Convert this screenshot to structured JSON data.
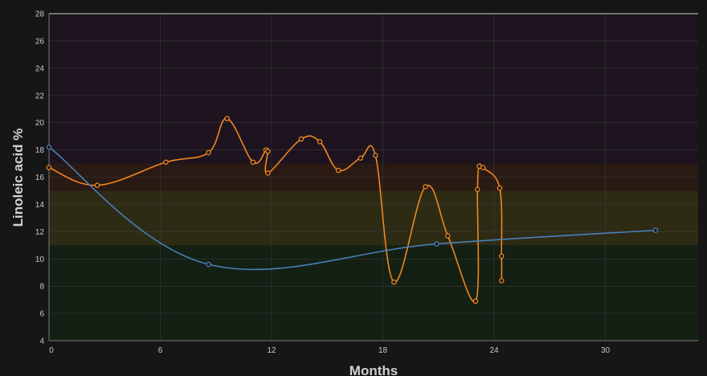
{
  "chart_data": {
    "type": "line",
    "xlabel": "Months",
    "ylabel": "Linoleic acid %",
    "xlim": [
      0,
      35
    ],
    "ylim": [
      4,
      28
    ],
    "x_ticks": [
      0,
      6,
      12,
      18,
      24,
      30
    ],
    "y_ticks": [
      4,
      6,
      8,
      10,
      12,
      14,
      16,
      18,
      20,
      22,
      24,
      26,
      28
    ],
    "grid": true,
    "background_bands": [
      {
        "from": 4,
        "to": 11,
        "color": "#142014"
      },
      {
        "from": 11,
        "to": 15,
        "color": "#2d2b14"
      },
      {
        "from": 15,
        "to": 17,
        "color": "#2a1a14"
      },
      {
        "from": 17,
        "to": 28,
        "color": "#1e1420"
      }
    ],
    "series": [
      {
        "color": "#f0861e",
        "points": [
          [
            0,
            16.7
          ],
          [
            2.6,
            15.4
          ],
          [
            6.3,
            17.1
          ],
          [
            8.6,
            17.8
          ],
          [
            9.6,
            20.3
          ],
          [
            11.0,
            17.1
          ],
          [
            11.7,
            18.0
          ],
          [
            11.8,
            17.9
          ],
          [
            11.8,
            16.3
          ],
          [
            13.6,
            18.8
          ],
          [
            14.6,
            18.6
          ],
          [
            15.6,
            16.5
          ],
          [
            16.8,
            17.4
          ],
          [
            17.6,
            17.6
          ],
          [
            18.6,
            8.3
          ],
          [
            20.3,
            15.3
          ],
          [
            21.5,
            11.7
          ],
          [
            23.0,
            6.9
          ],
          [
            23.1,
            15.1
          ],
          [
            23.2,
            16.8
          ],
          [
            23.4,
            16.7
          ],
          [
            24.3,
            15.2
          ],
          [
            24.4,
            10.2
          ],
          [
            24.4,
            8.4
          ]
        ]
      },
      {
        "color": "#4a7eb8",
        "points": [
          [
            0,
            18.2
          ],
          [
            8.6,
            9.6
          ],
          [
            20.9,
            11.1
          ],
          [
            32.7,
            12.1
          ]
        ]
      }
    ]
  }
}
